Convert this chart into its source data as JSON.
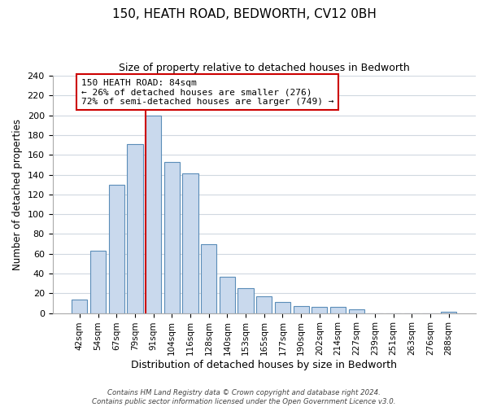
{
  "title": "150, HEATH ROAD, BEDWORTH, CV12 0BH",
  "subtitle": "Size of property relative to detached houses in Bedworth",
  "xlabel": "Distribution of detached houses by size in Bedworth",
  "ylabel": "Number of detached properties",
  "bar_labels": [
    "42sqm",
    "54sqm",
    "67sqm",
    "79sqm",
    "91sqm",
    "104sqm",
    "116sqm",
    "128sqm",
    "140sqm",
    "153sqm",
    "165sqm",
    "177sqm",
    "190sqm",
    "202sqm",
    "214sqm",
    "227sqm",
    "239sqm",
    "251sqm",
    "263sqm",
    "276sqm",
    "288sqm"
  ],
  "bar_values": [
    14,
    63,
    130,
    171,
    200,
    153,
    141,
    70,
    37,
    25,
    17,
    11,
    7,
    6,
    6,
    4,
    0,
    0,
    0,
    0,
    1
  ],
  "bar_color": "#c9d9ed",
  "bar_edge_color": "#5b8db8",
  "highlight_bar_index": 4,
  "highlight_line_color": "#cc0000",
  "annotation_title": "150 HEATH ROAD: 84sqm",
  "annotation_line1": "← 26% of detached houses are smaller (276)",
  "annotation_line2": "72% of semi-detached houses are larger (749) →",
  "annotation_box_edge_color": "#cc0000",
  "ylim": [
    0,
    240
  ],
  "yticks": [
    0,
    20,
    40,
    60,
    80,
    100,
    120,
    140,
    160,
    180,
    200,
    220,
    240
  ],
  "footer_line1": "Contains HM Land Registry data © Crown copyright and database right 2024.",
  "footer_line2": "Contains public sector information licensed under the Open Government Licence v3.0.",
  "background_color": "#ffffff",
  "grid_color": "#d0d8e0"
}
